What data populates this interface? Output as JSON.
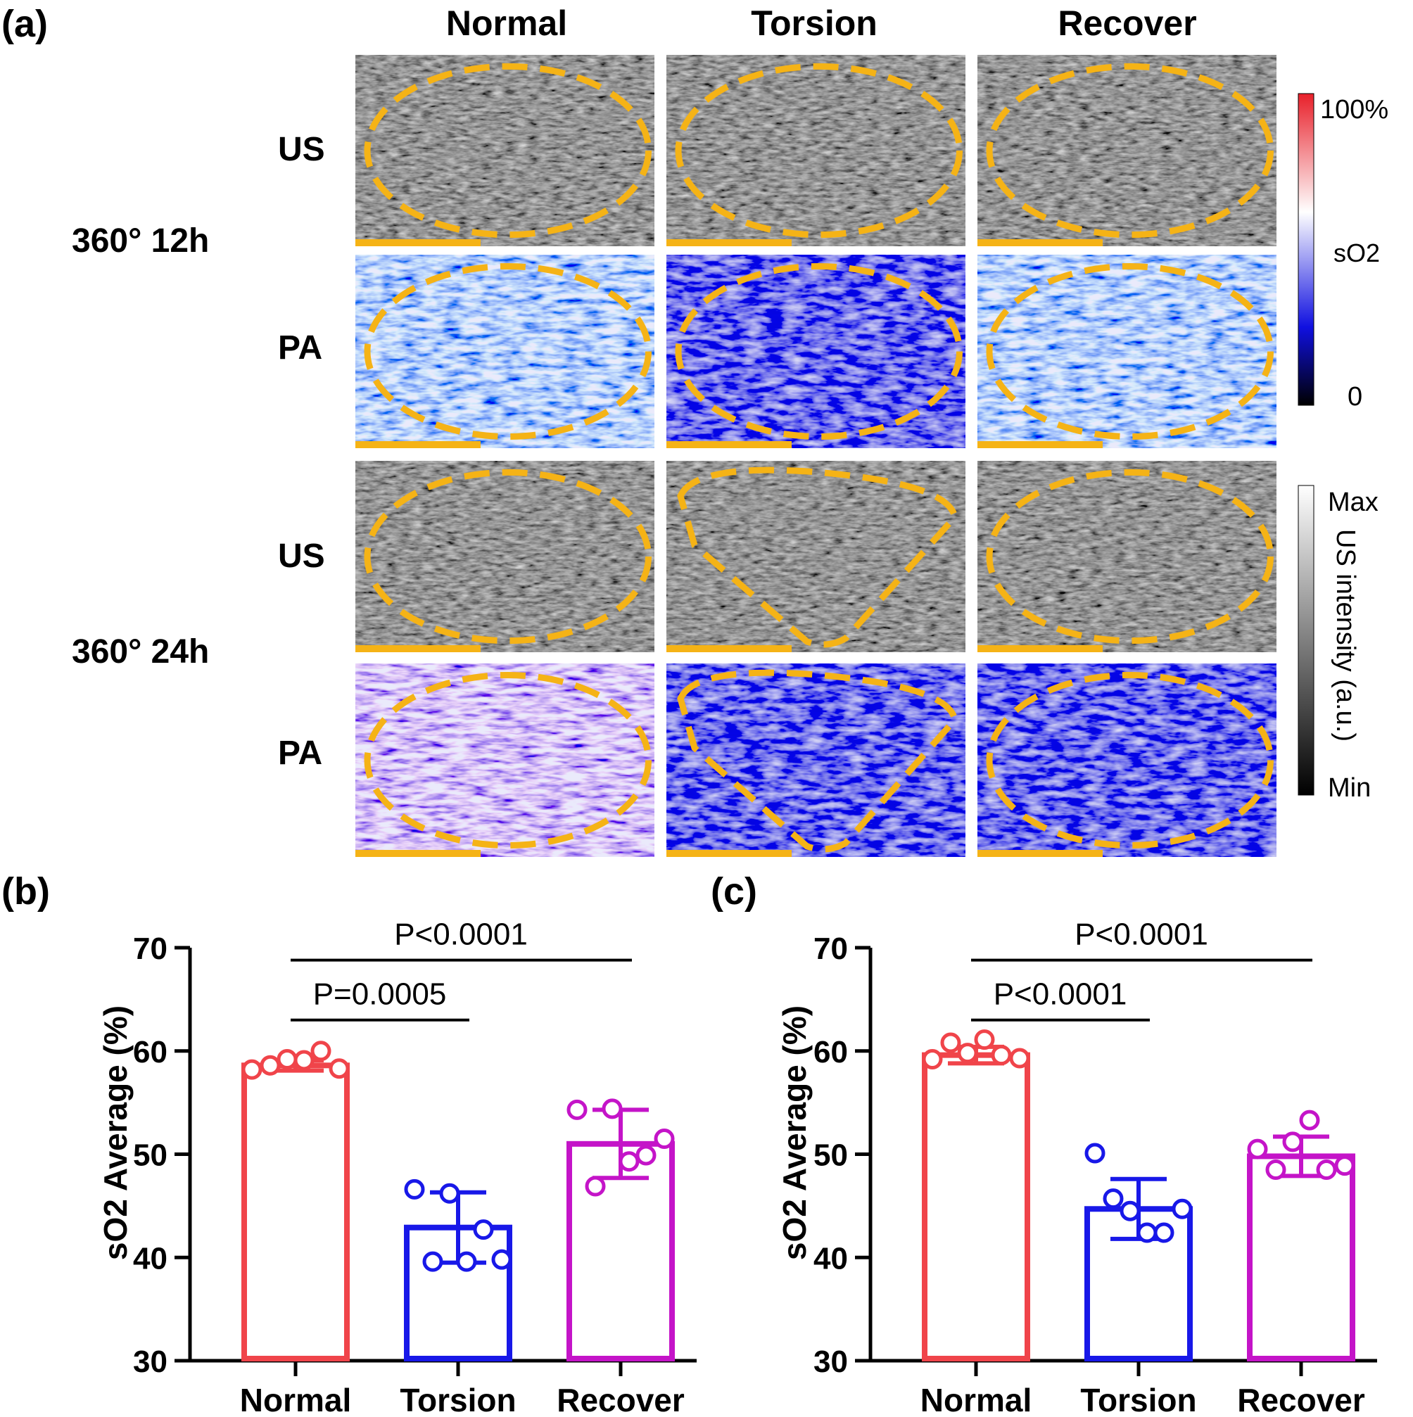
{
  "panel_a": {
    "label": "(a)",
    "columns": [
      "Normal",
      "Torsion",
      "Recover"
    ],
    "row_groups": [
      {
        "condition": "360° 12h",
        "rows": [
          "US",
          "PA"
        ]
      },
      {
        "condition": "360° 24h",
        "rows": [
          "US",
          "PA"
        ]
      }
    ],
    "so2_colorbar": {
      "top": "100%",
      "bottom": "0",
      "title": "sO2"
    },
    "us_colorbar": {
      "top": "Max",
      "bottom": "Min",
      "title": "US intensity (a.u.)"
    },
    "colors": {
      "outline": "#f5b316",
      "scale_bar": "#f5b316",
      "pa_high": "#e8202a",
      "pa_mid": "#ffffff",
      "pa_low": "#1010e0"
    }
  },
  "chart_data": [
    {
      "panel": "(b)",
      "type": "bar",
      "categories": [
        "Normal",
        "Torsion",
        "Recover"
      ],
      "ylabel": "sO2 Average (%)",
      "ylim": [
        30,
        70
      ],
      "yticks": [
        30,
        40,
        50,
        60,
        70
      ],
      "colors": [
        "#f0444a",
        "#1818e8",
        "#c414c8"
      ],
      "means": [
        58.6,
        42.9,
        51.0
      ],
      "sd": [
        0.5,
        3.4,
        3.3
      ],
      "points": [
        [
          58.2,
          58.6,
          59.2,
          59.1,
          60.0,
          58.3
        ],
        [
          46.6,
          39.6,
          46.2,
          39.6,
          42.7,
          39.8
        ],
        [
          54.3,
          46.9,
          54.4,
          49.3,
          49.9,
          51.5
        ]
      ],
      "comparisons": [
        {
          "label": "P=0.0005",
          "from": "Normal",
          "to": "Torsion",
          "y": 63.0
        },
        {
          "label": "P<0.0001",
          "from": "Normal",
          "to": "Recover",
          "y": 68.8
        }
      ]
    },
    {
      "panel": "(c)",
      "type": "bar",
      "categories": [
        "Normal",
        "Torsion",
        "Recover"
      ],
      "ylabel": "sO2 Average (%)",
      "ylim": [
        30,
        70
      ],
      "yticks": [
        30,
        40,
        50,
        60,
        70
      ],
      "colors": [
        "#f0444a",
        "#1818e8",
        "#c414c8"
      ],
      "means": [
        59.6,
        44.7,
        49.8
      ],
      "sd": [
        0.8,
        2.9,
        1.9
      ],
      "points": [
        [
          59.2,
          60.8,
          59.8,
          61.1,
          59.6,
          59.3
        ],
        [
          50.1,
          45.7,
          44.5,
          42.4,
          42.4,
          44.7
        ],
        [
          50.5,
          48.5,
          51.2,
          53.3,
          48.5,
          48.9
        ]
      ],
      "comparisons": [
        {
          "label": "P<0.0001",
          "from": "Normal",
          "to": "Torsion",
          "y": 63.0
        },
        {
          "label": "P<0.0001",
          "from": "Normal",
          "to": "Recover",
          "y": 68.8
        }
      ]
    }
  ]
}
